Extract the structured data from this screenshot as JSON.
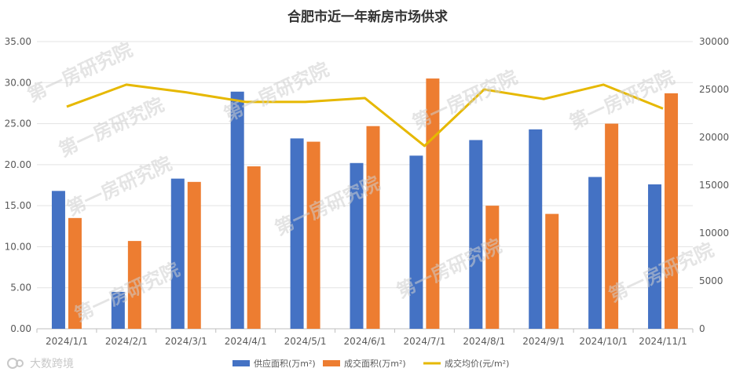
{
  "chart_data": {
    "type": "bar",
    "title": "合肥市近一年新房市场供求",
    "categories": [
      "2024/1/1",
      "2024/2/1",
      "2024/3/1",
      "2024/4/1",
      "2024/5/1",
      "2024/6/1",
      "2024/7/1",
      "2024/8/1",
      "2024/9/1",
      "2024/10/1",
      "2024/11/1"
    ],
    "series": [
      {
        "name": "供应面积(万m²)",
        "type": "bar",
        "axis": "left",
        "color": "#4472C4",
        "values": [
          16.8,
          4.5,
          18.3,
          28.9,
          23.2,
          20.2,
          21.1,
          23.0,
          24.3,
          18.5,
          17.6
        ]
      },
      {
        "name": "成交面积(万m²)",
        "type": "bar",
        "axis": "left",
        "color": "#ED7D31",
        "values": [
          13.5,
          10.7,
          17.9,
          19.8,
          22.8,
          24.7,
          30.5,
          15.0,
          14.0,
          25.0,
          28.7
        ]
      },
      {
        "name": "成交均价(元/m²)",
        "type": "line",
        "axis": "right",
        "color": "#E6B800",
        "values": [
          23200,
          25500,
          24700,
          23700,
          23700,
          24100,
          19100,
          25000,
          24000,
          25500,
          23000
        ]
      }
    ],
    "y_left": {
      "min": 0,
      "max": 35,
      "step": 5,
      "ticks": [
        "0.00",
        "5.00",
        "10.00",
        "15.00",
        "20.00",
        "25.00",
        "30.00",
        "35.00"
      ]
    },
    "y_right": {
      "min": 0,
      "max": 30000,
      "step": 5000,
      "ticks": [
        "0",
        "5000",
        "10000",
        "15000",
        "20000",
        "25000",
        "30000"
      ]
    },
    "grid": true,
    "legend_position": "bottom"
  },
  "watermark": "第一房研究院",
  "brand": "大数跨境"
}
